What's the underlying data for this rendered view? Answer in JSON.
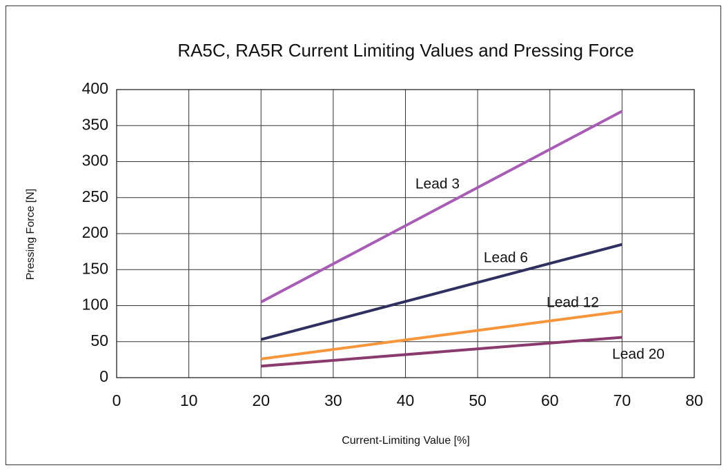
{
  "chart_data": {
    "type": "line",
    "title": "RA5C, RA5R Current Limiting Values and Pressing Force",
    "x_label": "Current-Limiting Value [%]",
    "y_label": "Pressing Force [N]",
    "x": [
      20,
      70
    ],
    "series": [
      {
        "name": "Lead 3",
        "color": "#a95cb6",
        "values": [
          105,
          370
        ]
      },
      {
        "name": "Lead 6",
        "color": "#2f3060",
        "values": [
          53,
          185
        ]
      },
      {
        "name": "Lead 12",
        "color": "#f7953b",
        "values": [
          26,
          92
        ]
      },
      {
        "name": "Lead 20",
        "color": "#8a3a6d",
        "values": [
          16,
          56
        ]
      }
    ],
    "xlim": [
      0,
      80
    ],
    "xticks": [
      0,
      10,
      20,
      30,
      40,
      50,
      60,
      70,
      80
    ],
    "ylim": [
      0,
      400
    ],
    "yticks": [
      0,
      50,
      100,
      150,
      200,
      250,
      300,
      350,
      400
    ],
    "grid": true
  }
}
